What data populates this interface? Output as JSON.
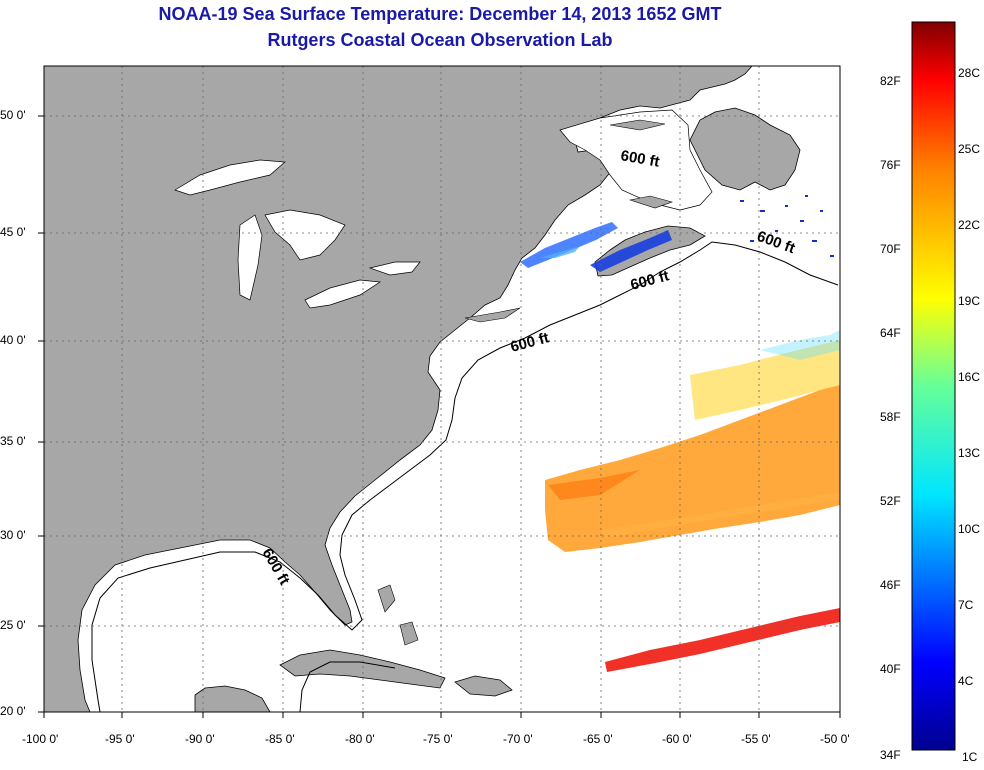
{
  "title_line1": "NOAA-19 Sea Surface Temperature:  December 14, 2013 1652 GMT",
  "title_line2": "Rutgers Coastal Ocean Observation Lab",
  "lon_ticks": [
    "-100 0'",
    "-95 0'",
    "-90 0'",
    "-85 0'",
    "-80 0'",
    "-75 0'",
    "-70 0'",
    "-65 0'",
    "-60 0'",
    "-55 0'",
    "-50 0'"
  ],
  "lat_ticks": [
    "50 0'",
    "45 0'",
    "40 0'",
    "35 0'",
    "30 0'",
    "25 0'",
    "20 0'"
  ],
  "contour_label": "600 ft",
  "colorbar": {
    "fahrenheit": [
      "82F",
      "76F",
      "70F",
      "64F",
      "58F",
      "52F",
      "46F",
      "40F",
      "34F"
    ],
    "celsius": [
      "28C",
      "25C",
      "22C",
      "19C",
      "16C",
      "13C",
      "10C",
      "7C",
      "4C",
      "1C"
    ]
  },
  "colors": {
    "land": "#a7a7a7",
    "ocean": "#ffffff",
    "title": "#1a1aa6"
  }
}
